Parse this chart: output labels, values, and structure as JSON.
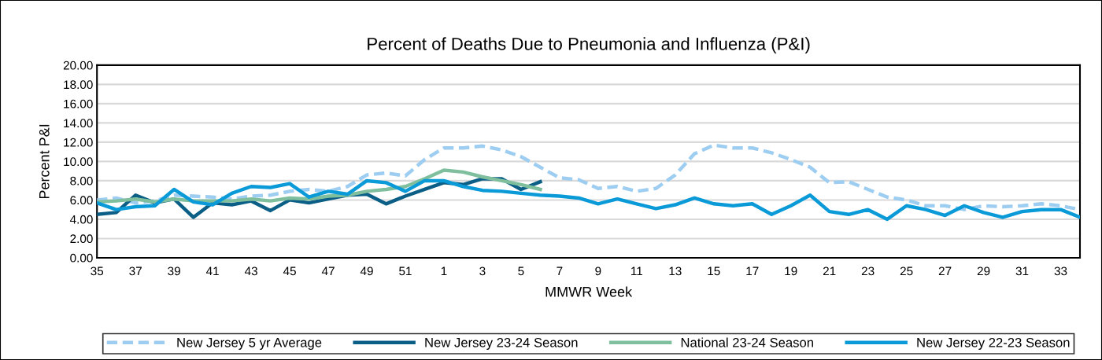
{
  "chart_data": {
    "type": "line",
    "title": "Percent of Deaths Due to Pneumonia and Influenza (P&I)",
    "xlabel": "MMWR Week",
    "ylabel": "Percent P&I",
    "categories": [
      "35",
      null,
      "37",
      null,
      "39",
      null,
      "41",
      null,
      "43",
      null,
      "45",
      null,
      "47",
      null,
      "49",
      null,
      "51",
      null,
      "1",
      null,
      "3",
      null,
      "5",
      null,
      "7",
      null,
      "9",
      null,
      "11",
      null,
      "13",
      null,
      "15",
      null,
      "17",
      null,
      "19",
      null,
      "21",
      null,
      "23",
      null,
      "25",
      null,
      "27",
      null,
      "29",
      null,
      "31",
      null,
      "33",
      null
    ],
    "series": [
      {
        "name": "New Jersey 5 yr Average",
        "color": "#9dcdf0",
        "line_style": "dashed",
        "values": [
          6.0,
          6.2,
          5.7,
          5.9,
          6.5,
          6.4,
          6.3,
          6.1,
          6.4,
          6.5,
          6.9,
          7.1,
          6.9,
          7.4,
          8.6,
          8.8,
          8.5,
          10.2,
          11.4,
          11.4,
          11.6,
          11.2,
          10.5,
          9.4,
          8.3,
          8.1,
          7.2,
          7.4,
          6.9,
          7.2,
          8.6,
          10.8,
          11.7,
          11.4,
          11.4,
          10.9,
          10.2,
          9.4,
          7.8,
          7.9,
          7.1,
          6.3,
          6.0,
          5.4,
          5.4,
          5.0,
          5.4,
          5.3,
          5.4,
          5.6,
          5.4,
          5.0
        ]
      },
      {
        "name": "New Jersey 23-24 Season",
        "color": "#0b5e86",
        "line_style": "solid",
        "values": [
          4.5,
          4.7,
          6.5,
          5.7,
          6.1,
          4.2,
          5.7,
          5.5,
          5.9,
          4.9,
          6.0,
          5.7,
          6.1,
          6.5,
          6.6,
          5.6,
          6.4,
          7.1,
          7.8,
          7.6,
          8.2,
          8.2,
          7.1,
          7.9,
          null,
          null,
          null,
          null,
          null,
          null,
          null,
          null,
          null,
          null,
          null,
          null,
          null,
          null,
          null,
          null,
          null,
          null,
          null,
          null,
          null,
          null,
          null,
          null,
          null,
          null,
          null,
          null
        ]
      },
      {
        "name": "National 23-24 Season",
        "color": "#7fbf9e",
        "line_style": "solid",
        "values": [
          5.8,
          5.9,
          6.1,
          5.8,
          6.1,
          5.9,
          5.9,
          5.9,
          6.1,
          5.9,
          6.2,
          6.1,
          6.4,
          6.5,
          6.9,
          7.1,
          7.4,
          8.2,
          9.1,
          8.9,
          8.4,
          8.0,
          7.6,
          7.1,
          null,
          null,
          null,
          null,
          null,
          null,
          null,
          null,
          null,
          null,
          null,
          null,
          null,
          null,
          null,
          null,
          null,
          null,
          null,
          null,
          null,
          null,
          null,
          null,
          null,
          null,
          null,
          null
        ]
      },
      {
        "name": "New Jersey 22-23 Season",
        "color": "#0a9ad8",
        "line_style": "solid",
        "values": [
          5.7,
          5.0,
          5.3,
          5.4,
          7.1,
          5.8,
          5.5,
          6.7,
          7.4,
          7.3,
          7.7,
          6.3,
          6.9,
          6.6,
          8.0,
          7.8,
          6.9,
          8.0,
          8.0,
          7.4,
          7.0,
          6.9,
          6.7,
          6.5,
          6.4,
          6.2,
          5.6,
          6.1,
          5.6,
          5.1,
          5.5,
          6.2,
          5.6,
          5.4,
          5.6,
          4.5,
          5.4,
          6.5,
          4.8,
          4.5,
          5.0,
          4.0,
          5.4,
          5.0,
          4.4,
          5.4,
          4.7,
          4.2,
          4.8,
          5.0,
          5.0,
          4.2
        ]
      }
    ],
    "ylim": [
      0,
      20
    ],
    "yticks": [
      {
        "value": 0,
        "label": "0.00"
      },
      {
        "value": 2,
        "label": "2.00"
      },
      {
        "value": 4,
        "label": "4.00"
      },
      {
        "value": 6,
        "label": "6.00"
      },
      {
        "value": 8,
        "label": "8.00"
      },
      {
        "value": 10,
        "label": "10.00"
      },
      {
        "value": 12,
        "label": "12.00"
      },
      {
        "value": 14,
        "label": "14.00"
      },
      {
        "value": 16,
        "label": "16.00"
      },
      {
        "value": 18,
        "label": "18.00"
      },
      {
        "value": 20,
        "label": "20.00"
      }
    ],
    "grid": "y",
    "legend": "bottom",
    "marker": "none"
  }
}
